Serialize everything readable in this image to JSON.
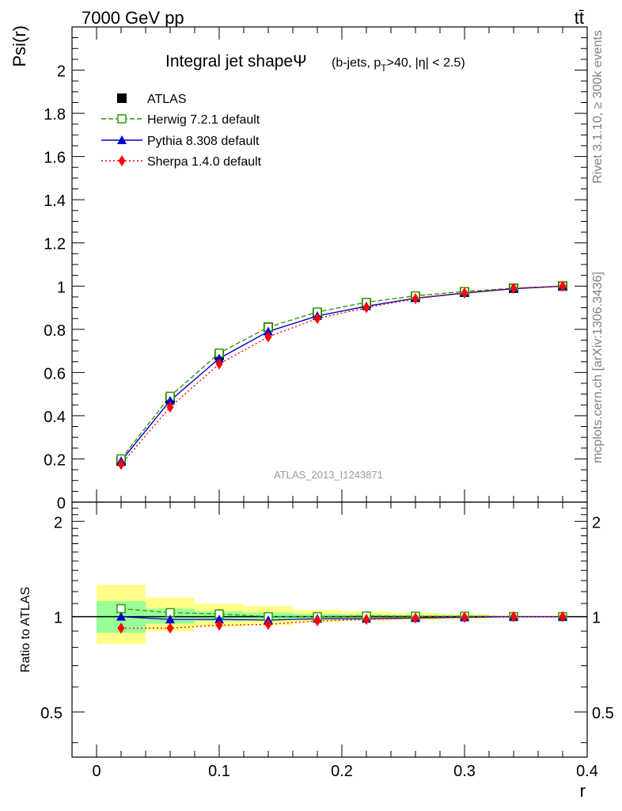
{
  "header": {
    "left": "7000 GeV pp",
    "right": "tt̄"
  },
  "side_text": {
    "rivet": "Rivet 3.1.10, ≥ 300k events",
    "mcplots": "mcplots.cern.ch [arXiv:1306.3436]"
  },
  "chart_data": {
    "type": "line",
    "title_main": "Integral jet shapeΨ",
    "title_sub_prefix": "(b-jets, p",
    "title_sub_subscript": "T",
    "title_sub_suffix": ">40, |η| < 2.5)",
    "analysis_id": "ATLAS_2013_I1243871",
    "xlabel": "r",
    "ylabel_top": "Psi(r)",
    "ylabel_bottom": "Ratio to ATLAS",
    "xlim": [
      -0.02,
      0.4
    ],
    "ylim_top": [
      0,
      2.2
    ],
    "ylim_bottom": [
      0.36,
      2.3
    ],
    "x_ticks": [
      "0",
      "0.1",
      "0.2",
      "0.3",
      "0.4"
    ],
    "y_ticks_top": [
      "0",
      "0.2",
      "0.4",
      "0.6",
      "0.8",
      "1",
      "1.2",
      "1.4",
      "1.6",
      "1.8",
      "2"
    ],
    "y_ticks_bottom": [
      "0.5",
      "1",
      "2"
    ],
    "x": [
      0.02,
      0.06,
      0.1,
      0.14,
      0.18,
      0.22,
      0.26,
      0.3,
      0.34,
      0.38
    ],
    "series": [
      {
        "name": "ATLAS",
        "color": "#000000",
        "marker": "square-filled",
        "line": "none",
        "values": [
          0.19,
          0.48,
          0.68,
          0.81,
          0.875,
          0.92,
          0.952,
          0.972,
          0.99,
          1.0
        ]
      },
      {
        "name": "Herwig 7.2.1 default",
        "color": "#339900",
        "marker": "square-open",
        "line": "dashed",
        "values": [
          0.2,
          0.49,
          0.69,
          0.81,
          0.88,
          0.925,
          0.955,
          0.975,
          0.99,
          1.0
        ]
      },
      {
        "name": "Pythia 8.308 default",
        "color": "#0000cc",
        "marker": "triangle",
        "line": "solid",
        "values": [
          0.19,
          0.47,
          0.665,
          0.79,
          0.862,
          0.907,
          0.944,
          0.968,
          0.988,
          1.0
        ]
      },
      {
        "name": "Sherpa 1.4.0 default",
        "color": "#ff0000",
        "marker": "diamond",
        "line": "dotted",
        "values": [
          0.175,
          0.44,
          0.64,
          0.765,
          0.85,
          0.9,
          0.942,
          0.968,
          0.99,
          1.0
        ]
      }
    ],
    "ratio_series": [
      {
        "name": "Herwig 7.2.1 default",
        "values": [
          1.06,
          1.03,
          1.02,
          1.0,
          1.0,
          1.005,
          1.003,
          1.003,
          1.0,
          1.0
        ]
      },
      {
        "name": "Pythia 8.308 default",
        "values": [
          1.0,
          0.98,
          0.98,
          0.975,
          0.985,
          0.985,
          0.99,
          0.995,
          1.0,
          1.0
        ]
      },
      {
        "name": "Sherpa 1.4.0 default",
        "values": [
          0.92,
          0.92,
          0.94,
          0.945,
          0.97,
          0.98,
          0.99,
          0.995,
          1.0,
          1.0
        ]
      }
    ],
    "uncertainty_bands": {
      "x_edges": [
        0.0,
        0.04,
        0.08,
        0.12,
        0.16,
        0.2,
        0.24,
        0.28,
        0.32,
        0.36,
        0.4
      ],
      "stat": [
        [
          0.89,
          1.12
        ],
        [
          0.95,
          1.06
        ],
        [
          0.97,
          1.04
        ],
        [
          0.975,
          1.03
        ],
        [
          0.985,
          1.02
        ],
        [
          0.99,
          1.015
        ],
        [
          0.99,
          1.012
        ],
        [
          0.993,
          1.01
        ],
        [
          0.997,
          1.003
        ],
        [
          0.999,
          1.001
        ]
      ],
      "total": [
        [
          0.82,
          1.26
        ],
        [
          0.9,
          1.15
        ],
        [
          0.93,
          1.1
        ],
        [
          0.94,
          1.08
        ],
        [
          0.96,
          1.05
        ],
        [
          0.97,
          1.04
        ],
        [
          0.975,
          1.03
        ],
        [
          0.985,
          1.02
        ],
        [
          0.995,
          1.006
        ],
        [
          0.999,
          1.001
        ]
      ],
      "stat_color": "#99ff99",
      "total_color": "#ffff88"
    }
  }
}
